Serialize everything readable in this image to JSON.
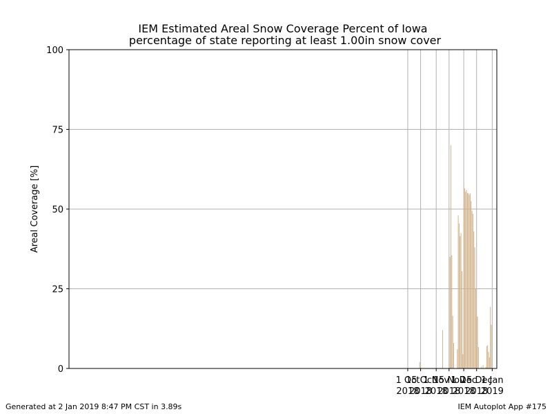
{
  "chart_data": {
    "type": "bar",
    "title": "IEM Estimated Areal Snow Coverage Percent of Iowa",
    "subtitle": "percentage of state reporting at least  1.00in snow cover",
    "ylabel": "Areal Coverage [%]",
    "xlabel": "",
    "ylim": [
      0,
      100
    ],
    "xlim": [
      "2017-09-27",
      "2019-01-06"
    ],
    "grid": true,
    "color": "#d2b48c",
    "yticks": [
      {
        "value": 0,
        "label": "0"
      },
      {
        "value": 25,
        "label": "25"
      },
      {
        "value": 50,
        "label": "50"
      },
      {
        "value": 75,
        "label": "75"
      },
      {
        "value": 100,
        "label": "100"
      }
    ],
    "xticks": [
      {
        "date": "2018-10-01",
        "line1": "1 Oct",
        "line2": "2018"
      },
      {
        "date": "2018-10-15",
        "line1": "15 Oct",
        "line2": "2018"
      },
      {
        "date": "2018-11-01",
        "line1": "1 Nov",
        "line2": "2018"
      },
      {
        "date": "2018-11-15",
        "line1": "15 Nov",
        "line2": "2018"
      },
      {
        "date": "2018-12-01",
        "line1": "1 Dec",
        "line2": "2018"
      },
      {
        "date": "2018-12-15",
        "line1": "15 Dec",
        "line2": "2018"
      },
      {
        "date": "2019-01-01",
        "line1": "1 Jan",
        "line2": "2019"
      }
    ],
    "points": [
      {
        "date": "2018-10-14",
        "value": 2
      },
      {
        "date": "2018-11-08",
        "value": 12
      },
      {
        "date": "2018-11-16",
        "value": 35
      },
      {
        "date": "2018-11-17",
        "value": 70
      },
      {
        "date": "2018-11-18",
        "value": 35.5
      },
      {
        "date": "2018-11-19",
        "value": 16.5
      },
      {
        "date": "2018-11-20",
        "value": 8
      },
      {
        "date": "2018-11-24",
        "value": 6
      },
      {
        "date": "2018-11-25",
        "value": 48
      },
      {
        "date": "2018-11-26",
        "value": 45.5
      },
      {
        "date": "2018-11-27",
        "value": 41.5
      },
      {
        "date": "2018-11-28",
        "value": 42.5
      },
      {
        "date": "2018-11-29",
        "value": 30.5
      },
      {
        "date": "2018-11-30",
        "value": 4.5
      },
      {
        "date": "2018-12-01",
        "value": 58
      },
      {
        "date": "2018-12-02",
        "value": 56.5
      },
      {
        "date": "2018-12-03",
        "value": 55.5
      },
      {
        "date": "2018-12-04",
        "value": 56
      },
      {
        "date": "2018-12-05",
        "value": 55
      },
      {
        "date": "2018-12-06",
        "value": 55
      },
      {
        "date": "2018-12-07",
        "value": 54.5
      },
      {
        "date": "2018-12-08",
        "value": 55
      },
      {
        "date": "2018-12-09",
        "value": 52.5
      },
      {
        "date": "2018-12-10",
        "value": 49.5
      },
      {
        "date": "2018-12-11",
        "value": 48.5
      },
      {
        "date": "2018-12-12",
        "value": 43
      },
      {
        "date": "2018-12-13",
        "value": 38
      },
      {
        "date": "2018-12-14",
        "value": 25
      },
      {
        "date": "2018-12-15",
        "value": 16
      },
      {
        "date": "2018-12-16",
        "value": 16.3
      },
      {
        "date": "2018-12-17",
        "value": 6.7
      },
      {
        "date": "2018-12-20",
        "value": 0.5
      },
      {
        "date": "2018-12-22",
        "value": 1
      },
      {
        "date": "2018-12-25",
        "value": 0.5
      },
      {
        "date": "2018-12-26",
        "value": 7
      },
      {
        "date": "2018-12-27",
        "value": 7.3
      },
      {
        "date": "2018-12-28",
        "value": 5.2
      },
      {
        "date": "2018-12-29",
        "value": 3.5
      },
      {
        "date": "2018-12-30",
        "value": 19.3
      },
      {
        "date": "2018-12-31",
        "value": 13.7
      }
    ]
  },
  "footer": {
    "generated": "Generated at 2 Jan 2019 8:47 PM CST in 3.89s",
    "app": "IEM Autoplot App #175"
  }
}
